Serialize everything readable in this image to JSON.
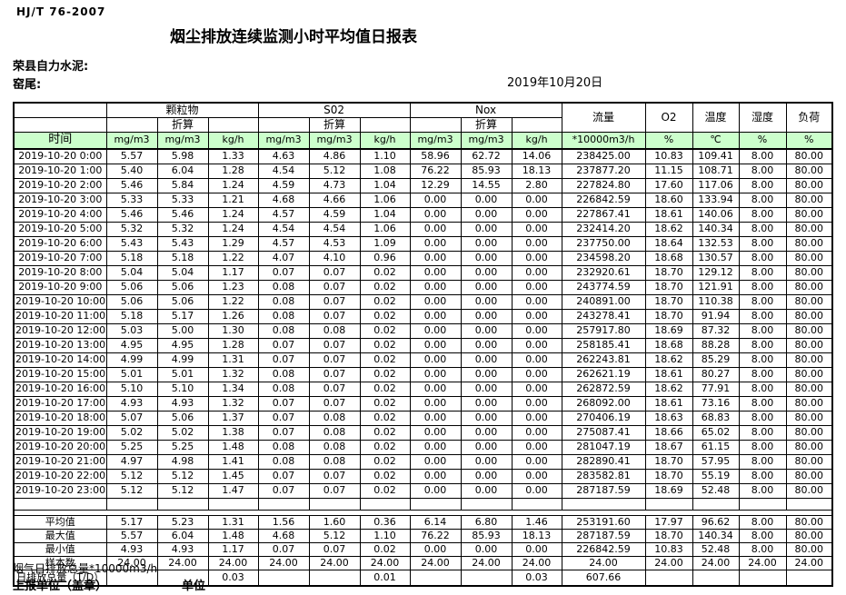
{
  "page": {
    "standard_code": "HJ/T  76-2007",
    "title": "烟尘排放连续监测小时平均值日报表",
    "company": "荣县自力水泥:",
    "station": "窑尾:",
    "date": "2019年10月20日"
  },
  "table": {
    "groups": {
      "particulate": "颗粒物",
      "so2": "S02",
      "nox": "Nox",
      "flow": "流量",
      "o2": "O2",
      "temperature": "温度",
      "humidity": "湿度",
      "load": "负荷"
    },
    "converted_label": "折算",
    "units": {
      "time": "时间",
      "mg": "mg/m3",
      "kg": "kg/h",
      "flow": "*10000m3/h",
      "percent": "%",
      "celsius": "℃"
    },
    "rows": [
      [
        "2019-10-20 0:00",
        "5.57",
        "5.98",
        "1.33",
        "4.63",
        "4.86",
        "1.10",
        "58.96",
        "62.72",
        "14.06",
        "238425.00",
        "10.83",
        "109.41",
        "8.00",
        "80.00"
      ],
      [
        "2019-10-20 1:00",
        "5.40",
        "6.04",
        "1.28",
        "4.54",
        "5.12",
        "1.08",
        "76.22",
        "85.93",
        "18.13",
        "237877.20",
        "11.15",
        "108.71",
        "8.00",
        "80.00"
      ],
      [
        "2019-10-20 2:00",
        "5.46",
        "5.84",
        "1.24",
        "4.59",
        "4.73",
        "1.04",
        "12.29",
        "14.55",
        "2.80",
        "227824.80",
        "17.60",
        "117.06",
        "8.00",
        "80.00"
      ],
      [
        "2019-10-20 3:00",
        "5.33",
        "5.33",
        "1.21",
        "4.68",
        "4.66",
        "1.06",
        "0.00",
        "0.00",
        "0.00",
        "226842.59",
        "18.60",
        "133.94",
        "8.00",
        "80.00"
      ],
      [
        "2019-10-20 4:00",
        "5.46",
        "5.46",
        "1.24",
        "4.57",
        "4.59",
        "1.04",
        "0.00",
        "0.00",
        "0.00",
        "227867.41",
        "18.61",
        "140.06",
        "8.00",
        "80.00"
      ],
      [
        "2019-10-20 5:00",
        "5.32",
        "5.32",
        "1.24",
        "4.54",
        "4.54",
        "1.06",
        "0.00",
        "0.00",
        "0.00",
        "232414.20",
        "18.62",
        "140.34",
        "8.00",
        "80.00"
      ],
      [
        "2019-10-20 6:00",
        "5.43",
        "5.43",
        "1.29",
        "4.57",
        "4.53",
        "1.09",
        "0.00",
        "0.00",
        "0.00",
        "237750.00",
        "18.64",
        "132.53",
        "8.00",
        "80.00"
      ],
      [
        "2019-10-20 7:00",
        "5.18",
        "5.18",
        "1.22",
        "4.07",
        "4.10",
        "0.96",
        "0.00",
        "0.00",
        "0.00",
        "234598.20",
        "18.68",
        "130.57",
        "8.00",
        "80.00"
      ],
      [
        "2019-10-20 8:00",
        "5.04",
        "5.04",
        "1.17",
        "0.07",
        "0.07",
        "0.02",
        "0.00",
        "0.00",
        "0.00",
        "232920.61",
        "18.70",
        "129.12",
        "8.00",
        "80.00"
      ],
      [
        "2019-10-20 9:00",
        "5.06",
        "5.06",
        "1.23",
        "0.08",
        "0.07",
        "0.02",
        "0.00",
        "0.00",
        "0.00",
        "243774.59",
        "18.70",
        "121.91",
        "8.00",
        "80.00"
      ],
      [
        "2019-10-20 10:00",
        "5.06",
        "5.06",
        "1.22",
        "0.08",
        "0.07",
        "0.02",
        "0.00",
        "0.00",
        "0.00",
        "240891.00",
        "18.70",
        "110.38",
        "8.00",
        "80.00"
      ],
      [
        "2019-10-20 11:00",
        "5.18",
        "5.17",
        "1.26",
        "0.08",
        "0.07",
        "0.02",
        "0.00",
        "0.00",
        "0.00",
        "243278.41",
        "18.70",
        "91.94",
        "8.00",
        "80.00"
      ],
      [
        "2019-10-20 12:00",
        "5.03",
        "5.00",
        "1.30",
        "0.08",
        "0.08",
        "0.02",
        "0.00",
        "0.00",
        "0.00",
        "257917.80",
        "18.69",
        "87.32",
        "8.00",
        "80.00"
      ],
      [
        "2019-10-20 13:00",
        "4.95",
        "4.95",
        "1.28",
        "0.07",
        "0.07",
        "0.02",
        "0.00",
        "0.00",
        "0.00",
        "258185.41",
        "18.68",
        "88.28",
        "8.00",
        "80.00"
      ],
      [
        "2019-10-20 14:00",
        "4.99",
        "4.99",
        "1.31",
        "0.07",
        "0.07",
        "0.02",
        "0.00",
        "0.00",
        "0.00",
        "262243.81",
        "18.62",
        "85.29",
        "8.00",
        "80.00"
      ],
      [
        "2019-10-20 15:00",
        "5.01",
        "5.01",
        "1.32",
        "0.08",
        "0.07",
        "0.02",
        "0.00",
        "0.00",
        "0.00",
        "262621.19",
        "18.61",
        "80.27",
        "8.00",
        "80.00"
      ],
      [
        "2019-10-20 16:00",
        "5.10",
        "5.10",
        "1.34",
        "0.08",
        "0.07",
        "0.02",
        "0.00",
        "0.00",
        "0.00",
        "262872.59",
        "18.62",
        "77.91",
        "8.00",
        "80.00"
      ],
      [
        "2019-10-20 17:00",
        "4.93",
        "4.93",
        "1.32",
        "0.07",
        "0.07",
        "0.02",
        "0.00",
        "0.00",
        "0.00",
        "268092.00",
        "18.61",
        "73.16",
        "8.00",
        "80.00"
      ],
      [
        "2019-10-20 18:00",
        "5.07",
        "5.06",
        "1.37",
        "0.07",
        "0.08",
        "0.02",
        "0.00",
        "0.00",
        "0.00",
        "270406.19",
        "18.63",
        "68.83",
        "8.00",
        "80.00"
      ],
      [
        "2019-10-20 19:00",
        "5.02",
        "5.02",
        "1.38",
        "0.07",
        "0.08",
        "0.02",
        "0.00",
        "0.00",
        "0.00",
        "275087.41",
        "18.66",
        "65.02",
        "8.00",
        "80.00"
      ],
      [
        "2019-10-20 20:00",
        "5.25",
        "5.25",
        "1.48",
        "0.08",
        "0.08",
        "0.02",
        "0.00",
        "0.00",
        "0.00",
        "281047.19",
        "18.67",
        "61.15",
        "8.00",
        "80.00"
      ],
      [
        "2019-10-20 21:00",
        "4.97",
        "4.98",
        "1.41",
        "0.08",
        "0.08",
        "0.02",
        "0.00",
        "0.00",
        "0.00",
        "282890.41",
        "18.70",
        "57.95",
        "8.00",
        "80.00"
      ],
      [
        "2019-10-20 22:00",
        "5.12",
        "5.12",
        "1.45",
        "0.07",
        "0.07",
        "0.02",
        "0.00",
        "0.00",
        "0.00",
        "283582.81",
        "18.70",
        "55.19",
        "8.00",
        "80.00"
      ],
      [
        "2019-10-20 23:00",
        "5.12",
        "5.12",
        "1.47",
        "0.07",
        "0.07",
        "0.02",
        "0.00",
        "0.00",
        "0.00",
        "287187.59",
        "18.69",
        "52.48",
        "8.00",
        "80.00"
      ]
    ],
    "summary": [
      {
        "label": "平均值",
        "values": [
          "5.17",
          "5.23",
          "1.31",
          "1.56",
          "1.60",
          "0.36",
          "6.14",
          "6.80",
          "1.46",
          "253191.60",
          "17.97",
          "96.62",
          "8.00",
          "80.00"
        ]
      },
      {
        "label": "最大值",
        "values": [
          "5.57",
          "6.04",
          "1.48",
          "4.68",
          "5.12",
          "1.10",
          "76.22",
          "85.93",
          "18.13",
          "287187.59",
          "18.70",
          "140.34",
          "8.00",
          "80.00"
        ]
      },
      {
        "label": "最小值",
        "values": [
          "4.93",
          "4.93",
          "1.17",
          "0.07",
          "0.07",
          "0.02",
          "0.00",
          "0.00",
          "0.00",
          "226842.59",
          "10.83",
          "52.48",
          "8.00",
          "80.00"
        ]
      },
      {
        "label": "样本数",
        "values": [
          "24.00",
          "24.00",
          "24.00",
          "24.00",
          "24.00",
          "24.00",
          "24.00",
          "24.00",
          "24.00",
          "24.00",
          "24.00",
          "24.00",
          "24.00",
          "24.00"
        ]
      }
    ],
    "daily_total": {
      "label_main": "日排放总量",
      "label_suffix": "（T/D）",
      "values": [
        "",
        "",
        "0.03",
        "",
        "",
        "0.01",
        "",
        "",
        "0.03",
        "607.66",
        "",
        "",
        "",
        ""
      ]
    }
  },
  "footer": {
    "note": "烟气日排放总量*10000m3/h",
    "report_unit": "上报单位（盖章）",
    "unit_label": "单位"
  },
  "colors": {
    "header_green": "#ccffcc",
    "border": "#000000"
  }
}
